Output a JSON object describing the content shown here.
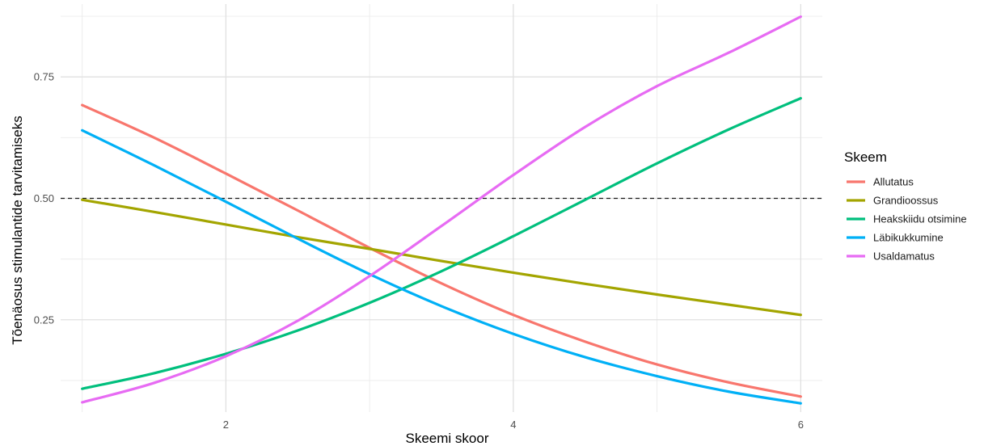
{
  "chart_data": {
    "type": "line",
    "xlabel": "Skeemi skoor",
    "ylabel": "Tõenäosus stimulantide tarvitamiseks",
    "xlim": [
      0.85,
      6.15
    ],
    "ylim": [
      0.06,
      0.9
    ],
    "x_ticks": [
      2,
      4,
      6
    ],
    "x_tick_labels": [
      "2",
      "4",
      "6"
    ],
    "y_ticks": [
      0.25,
      0.5,
      0.75
    ],
    "y_tick_labels": [
      "0.25",
      "0.50",
      "0.75"
    ],
    "grid": true,
    "reference_line": {
      "y": 0.5,
      "style": "dashed"
    },
    "legend": {
      "title": "Skeem",
      "position": "right"
    },
    "series": [
      {
        "name": "Allutatus",
        "color": "#F8766D",
        "x": [
          1,
          1.5,
          2,
          2.5,
          3,
          3.5,
          4,
          4.5,
          5,
          5.5,
          6
        ],
        "y": [
          0.692,
          0.625,
          0.551,
          0.475,
          0.398,
          0.325,
          0.26,
          0.205,
          0.158,
          0.121,
          0.092
        ]
      },
      {
        "name": "Grandioossus",
        "color": "#A3A500",
        "x": [
          1,
          1.5,
          2,
          2.5,
          3,
          3.5,
          4,
          4.5,
          5,
          5.5,
          6
        ],
        "y": [
          0.497,
          0.472,
          0.446,
          0.42,
          0.396,
          0.371,
          0.347,
          0.324,
          0.302,
          0.281,
          0.26
        ]
      },
      {
        "name": "Heakskiidu otsimine",
        "color": "#00BF7D",
        "x": [
          1,
          1.5,
          2,
          2.5,
          3,
          3.5,
          4,
          4.5,
          5,
          5.5,
          6
        ],
        "y": [
          0.108,
          0.14,
          0.18,
          0.228,
          0.285,
          0.35,
          0.422,
          0.497,
          0.572,
          0.642,
          0.706
        ]
      },
      {
        "name": "Läbikukkumine",
        "color": "#00B0F6",
        "x": [
          1,
          1.5,
          2,
          2.5,
          3,
          3.5,
          4,
          4.5,
          5,
          5.5,
          6
        ],
        "y": [
          0.64,
          0.568,
          0.493,
          0.417,
          0.344,
          0.278,
          0.221,
          0.173,
          0.134,
          0.102,
          0.078
        ]
      },
      {
        "name": "Usaldamatus",
        "color": "#E76BF3",
        "x": [
          1,
          1.5,
          2,
          2.5,
          3,
          3.5,
          4,
          4.5,
          5,
          5.5,
          6
        ],
        "y": [
          0.08,
          0.12,
          0.175,
          0.248,
          0.34,
          0.443,
          0.548,
          0.647,
          0.731,
          0.8,
          0.874
        ]
      }
    ]
  }
}
